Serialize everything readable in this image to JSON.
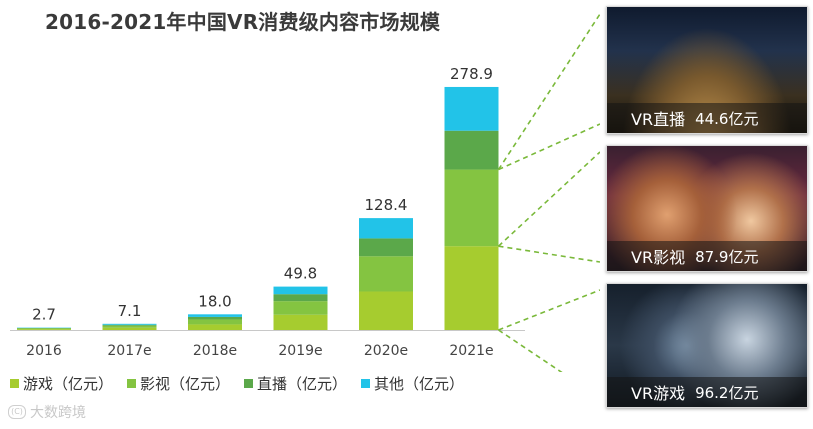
{
  "title": "2016-2021年中国VR消费级内容市场规模",
  "colors": {
    "游戏": "#a6cc2f",
    "影视": "#84c441",
    "直播": "#5ba84a",
    "其他": "#22c3e8",
    "connector": "#7ab93a"
  },
  "chart_data": {
    "type": "bar",
    "stacked": true,
    "categories": [
      "2016",
      "2017e",
      "2018e",
      "2019e",
      "2020e",
      "2021e"
    ],
    "totals": [
      2.7,
      7.1,
      18.0,
      49.8,
      128.4,
      278.9
    ],
    "total_labels": [
      "2.7",
      "7.1",
      "18.0",
      "49.8",
      "128.4",
      "278.9"
    ],
    "series": [
      {
        "name": "游戏（亿元）",
        "values": [
          1.0,
          2.6,
          6.4,
          17.5,
          44.2,
          96.2
        ]
      },
      {
        "name": "影视（亿元）",
        "values": [
          0.9,
          2.3,
          5.7,
          15.6,
          40.4,
          87.9
        ]
      },
      {
        "name": "直播（亿元）",
        "values": [
          0.4,
          1.1,
          2.9,
          8.0,
          20.5,
          44.6
        ]
      },
      {
        "name": "其他（亿元）",
        "values": [
          0.4,
          1.1,
          3.0,
          8.7,
          23.3,
          50.2
        ]
      }
    ],
    "ylim": [
      0,
      280
    ],
    "grid": false,
    "legend": "bottom"
  },
  "legend": [
    {
      "key": "游戏",
      "label": "游戏（亿元）"
    },
    {
      "key": "影视",
      "label": "影视（亿元）"
    },
    {
      "key": "直播",
      "label": "直播（亿元）"
    },
    {
      "key": "其他",
      "label": "其他（亿元）"
    }
  ],
  "panels": {
    "live": {
      "label": "VR直播",
      "value": "44.6亿元",
      "icon": "vr-livestream-photo"
    },
    "film": {
      "label": "VR影视",
      "value": "87.9亿元",
      "icon": "vr-film-photo"
    },
    "game": {
      "label": "VR游戏",
      "value": "96.2亿元",
      "icon": "vr-game-photo"
    }
  },
  "watermark": {
    "icon_text": "(C)",
    "text": "大数跨境"
  }
}
